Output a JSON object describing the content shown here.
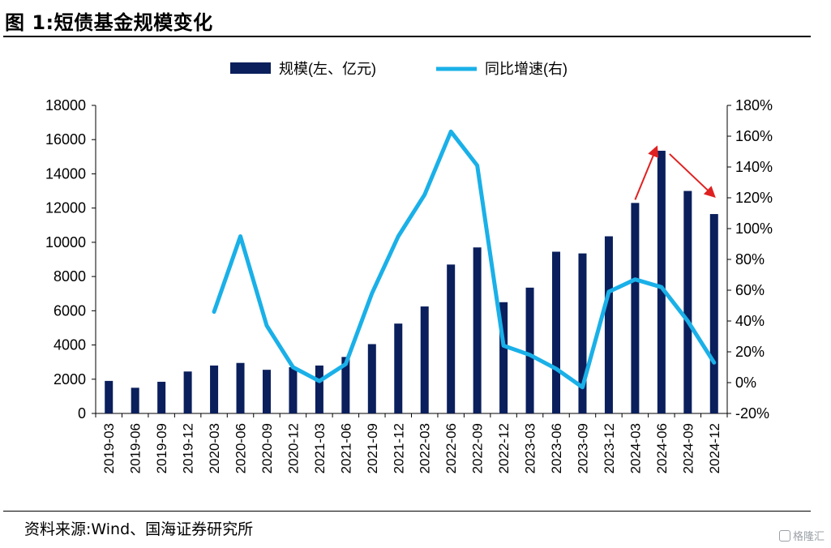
{
  "title": "图 1:短债基金规模变化",
  "source": "资料来源:Wind、国海证券研究所",
  "watermark": "格隆汇",
  "colors": {
    "bar": "#0a1f5c",
    "line": "#1ab0e8",
    "arrow": "#e02020"
  },
  "chart_data": {
    "type": "bar+line",
    "categories": [
      "2019-03",
      "2019-06",
      "2019-09",
      "2019-12",
      "2020-03",
      "2020-06",
      "2020-09",
      "2020-12",
      "2021-03",
      "2021-06",
      "2021-09",
      "2021-12",
      "2022-03",
      "2022-06",
      "2022-09",
      "2022-12",
      "2023-03",
      "2023-06",
      "2023-09",
      "2023-12",
      "2024-03",
      "2024-06",
      "2024-09",
      "2024-12"
    ],
    "series": [
      {
        "name": "规模(左、亿元)",
        "type": "bar",
        "axis": "left",
        "values": [
          1900,
          1500,
          1850,
          2450,
          2800,
          2950,
          2550,
          2700,
          2800,
          3300,
          4050,
          5250,
          6250,
          8700,
          9700,
          6500,
          7350,
          9450,
          9350,
          10350,
          12300,
          15350,
          13000,
          11650
        ]
      },
      {
        "name": "同比增速(右)",
        "type": "line",
        "axis": "right",
        "unit": "%",
        "values": [
          null,
          null,
          null,
          null,
          46,
          95,
          37,
          10,
          1,
          12,
          58,
          95,
          122,
          163,
          141,
          24,
          18,
          9,
          -3,
          59,
          67,
          62,
          40,
          13
        ]
      }
    ],
    "left_axis": {
      "min": 0,
      "max": 18000,
      "step": 2000,
      "ticks": [
        "0",
        "2000",
        "4000",
        "6000",
        "8000",
        "10000",
        "12000",
        "14000",
        "16000",
        "18000"
      ]
    },
    "right_axis": {
      "min": -20,
      "max": 180,
      "step": 20,
      "ticks": [
        "-20%",
        "0%",
        "20%",
        "40%",
        "60%",
        "80%",
        "100%",
        "120%",
        "140%",
        "160%",
        "180%"
      ]
    },
    "legend_placement": "top-center",
    "grid": false,
    "annotations": [
      {
        "type": "arrow",
        "from_category": "2024-03",
        "to_category": "2024-06",
        "direction": "up"
      },
      {
        "type": "arrow",
        "from_category": "2024-06",
        "to_category": "2024-12",
        "direction": "down"
      }
    ]
  }
}
